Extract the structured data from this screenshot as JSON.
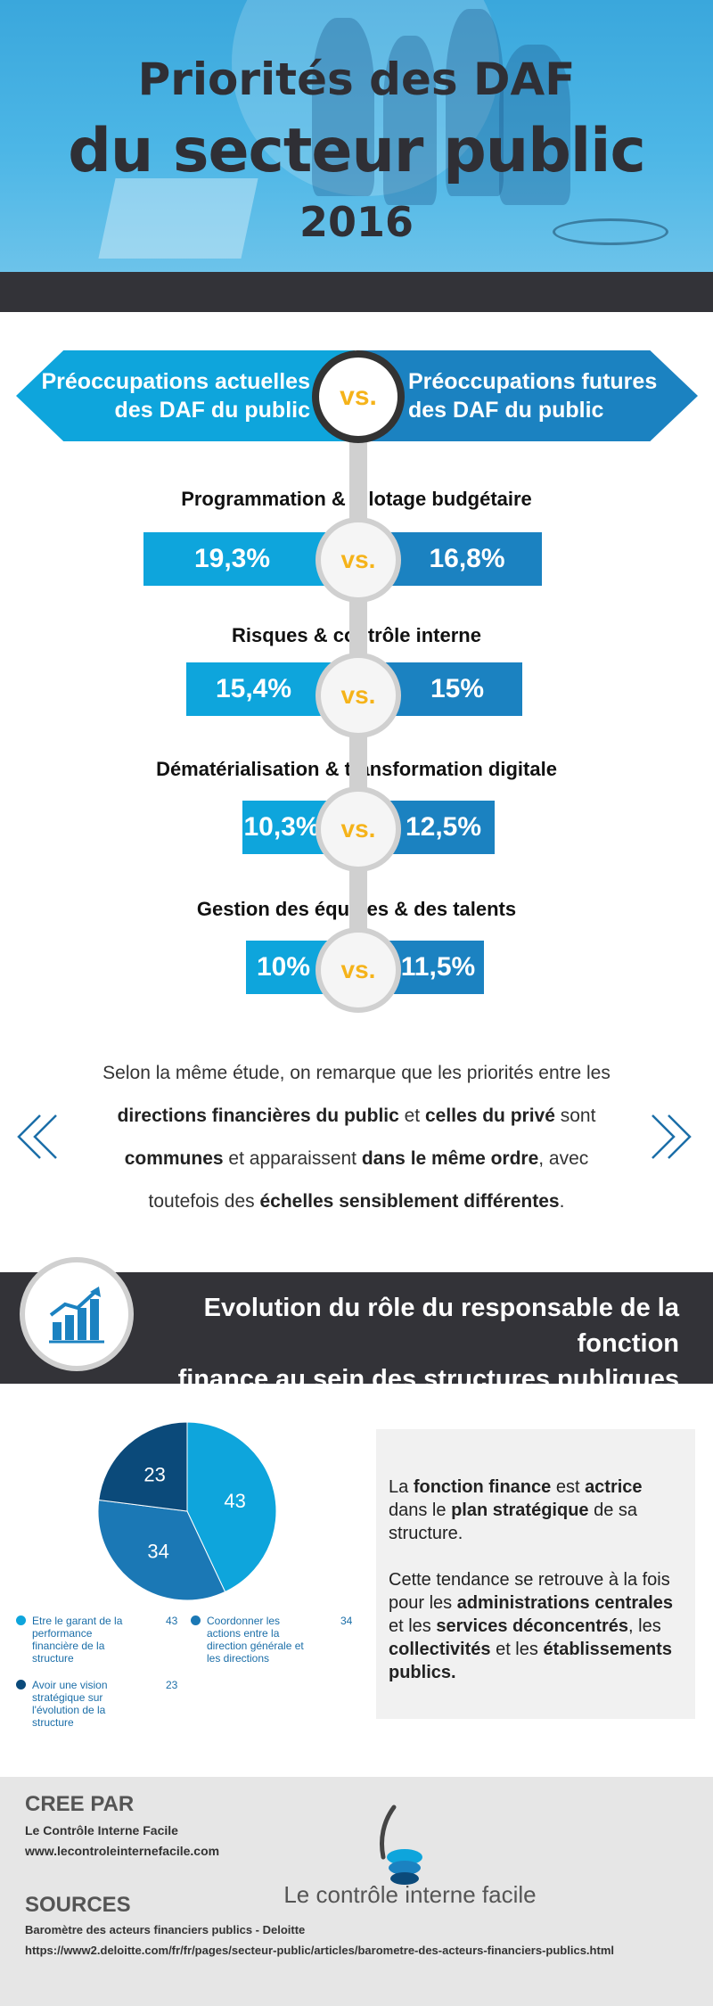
{
  "header": {
    "title_line1": "Priorités des DAF",
    "title_line2": "du secteur public",
    "year": "2016"
  },
  "comparison": {
    "left_heading_line1": "Préoccupations actuelles",
    "left_heading_line2": "des DAF du public",
    "right_heading_line1": "Préoccupations futures",
    "right_heading_line2": "des DAF du public",
    "vs_label": "vs.",
    "rows": [
      {
        "category": "Programmation & pilotage budgétaire",
        "current": "19,3%",
        "future": "16,8%"
      },
      {
        "category": "Risques & contrôle interne",
        "current": "15,4%",
        "future": "15%"
      },
      {
        "category": "Dématérialisation & transformation digitale",
        "current": "10,3%",
        "future": "12,5%"
      },
      {
        "category": "Gestion des équipes & des talents",
        "current": "10%",
        "future": "11,5%"
      }
    ],
    "bar_values": {
      "current": [
        19.3,
        15.4,
        10.3,
        10
      ],
      "future": [
        16.8,
        15,
        12.5,
        11.5
      ]
    }
  },
  "study_text": {
    "s1": "Selon la même étude, on remarque que les priorités entre les",
    "s2b": "directions financières du public",
    "s3": " et ",
    "s4b": "celles du privé",
    "s5": " sont",
    "s6b": "communes",
    "s7": " et apparaissent ",
    "s8b": "dans le même ordre",
    "s9": ",  avec",
    "s10": "toutefois des ",
    "s11b": "échelles sensiblement différentes",
    "s12": "."
  },
  "section": {
    "title_line1": "Evolution du rôle du responsable de la fonction",
    "title_line2": "finance au sein des structures publiques"
  },
  "chart_data": {
    "type": "pie",
    "categories": [
      "Etre le garant de la performance financière de la structure",
      "Coordonner les actions entre la direction générale et les directions",
      "Avoir une vision stratégique sur l'évolution de la structure"
    ],
    "values": [
      43,
      34,
      23
    ],
    "colors": [
      "#0ea5dc",
      "#1b78b5",
      "#0b4a7a"
    ],
    "labels": [
      "43",
      "34",
      "23"
    ],
    "legend_placement": "bottom"
  },
  "sidebox": {
    "p1_a": "La ",
    "p1_b": "fonction finance",
    "p1_c": " est ",
    "p1_d": "actrice",
    "p1_e": " dans le ",
    "p1_f": "plan stratégique",
    "p1_g": " de sa structure.",
    "p2_a": "Cette tendance se retrouve à la fois pour les ",
    "p2_b": "administrations centrales",
    "p2_c": " et les ",
    "p2_d": "services déconcentrés",
    "p2_e": ", les ",
    "p2_f": "collectivités",
    "p2_g": " et les ",
    "p2_h": "établissements publics."
  },
  "footer": {
    "created_heading": "CREE PAR",
    "created_name": "Le Contrôle Interne Facile",
    "created_url": "www.lecontroleinternefacile.com",
    "brand": "Le contrôle interne facile",
    "sources_heading": "SOURCES",
    "source_name": "Baromètre des acteurs financiers publics - Deloitte",
    "source_url": "https://www2.deloitte.com/fr/fr/pages/secteur-public/articles/barometre-des-acteurs-financiers-publics.html"
  },
  "colors": {
    "current": "#0ea5dc",
    "future": "#1b82c1",
    "vs": "#f5b31a",
    "dark": "#333338"
  },
  "icons": [
    "previous-chevrons-icon",
    "next-chevrons-icon",
    "growth-chart-icon",
    "brand-logo-icon"
  ]
}
